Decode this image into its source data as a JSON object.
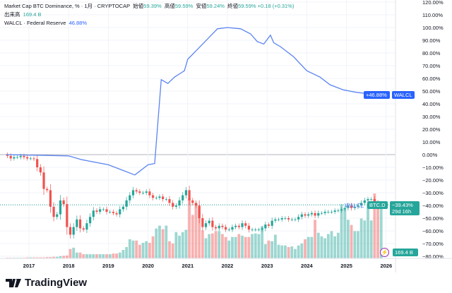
{
  "legend": {
    "title": "Market Cap BTC Dominance, % · 1月 · CRYPTOCAP",
    "open_label": "始値",
    "open": "59.39%",
    "high_label": "高値",
    "high": "59.59%",
    "low_label": "安値",
    "low": "59.24%",
    "close_label": "終値",
    "close": "59.59%",
    "change": "+0.18 (+0.31%)",
    "volume_label": "出来高",
    "volume": "169.4 B",
    "walcl_title": "WALCL · Federal Reserve",
    "walcl_value": "46.88%"
  },
  "badges": {
    "walcl_name": "WALCL",
    "walcl_value": "+46.88%",
    "btc_name": "BTC.D",
    "btc_value": "−39.43%",
    "btc_countdown": "29d 16h",
    "walcl_inline": "WALCL",
    "volume": "169.4 B"
  },
  "footer": {
    "brand": "TradingView"
  },
  "colors": {
    "up": "#26a69a",
    "down": "#ef5350",
    "walcl": "#5b84f0",
    "walcl_badge": "#2962ff",
    "lightning": "#9c27b0"
  },
  "icons": {
    "alert": "lightning-icon",
    "logo": "tradingview-logo"
  },
  "chart_data": {
    "type": "candlestick+line",
    "scale": "percent",
    "ylim": [
      -80,
      120
    ],
    "yticks": [
      "120.00%",
      "110.00%",
      "100.00%",
      "90.00%",
      "80.00%",
      "70.00%",
      "60.00%",
      "50.00%",
      "40.00%",
      "30.00%",
      "20.00%",
      "10.00%",
      "0.00%",
      "−10.00%",
      "−20.00%",
      "−30.00%",
      "−40.00%",
      "−50.00%",
      "−60.00%",
      "−70.00%",
      "−80.00%"
    ],
    "xticks": [
      "2017",
      "2018",
      "2019",
      "2020",
      "2021",
      "2022",
      "2023",
      "2024",
      "2025",
      "2026"
    ],
    "grid": true,
    "btc_d": {
      "name": "BTC.D",
      "start_month": "2016-06",
      "interval": "1M",
      "closes": [
        -1,
        -3,
        -2,
        -2,
        -1,
        -2,
        -3,
        -3,
        -3.5,
        -10,
        -14,
        -27,
        -28,
        -41,
        -49,
        -47,
        -36,
        -39,
        -57,
        -63,
        -57,
        -51,
        -58,
        -59,
        -54,
        -49,
        -44,
        -45,
        -43,
        -43,
        -45,
        -45,
        -46,
        -47,
        -43,
        -41,
        -36,
        -32,
        -28,
        -29,
        -30,
        -30,
        -29,
        -32,
        -34,
        -34,
        -33,
        -35,
        -35,
        -38,
        -41,
        -40,
        -36,
        -32,
        -28,
        -36,
        -38,
        -40,
        -50,
        -57,
        -54,
        -52,
        -57,
        -58,
        -56,
        -57,
        -59,
        -59,
        -57,
        -56,
        -57,
        -54,
        -56,
        -59,
        -59,
        -59,
        -59,
        -58,
        -55,
        -56,
        -52,
        -51,
        -51,
        -50,
        -50,
        -51,
        -51,
        -51,
        -49,
        -47,
        -48,
        -47,
        -46,
        -48,
        -46,
        -46,
        -45,
        -45,
        -45,
        -44,
        -44,
        -43,
        -42,
        -40,
        -42,
        -41,
        -40,
        -38,
        -36,
        -35,
        -35,
        -38,
        -41,
        -39.43
      ],
      "volume_B": [
        2,
        2,
        2,
        2,
        2,
        2,
        3,
        3,
        3,
        3,
        3,
        3,
        4,
        4,
        5,
        5,
        7,
        8,
        9,
        29,
        33,
        18,
        18,
        13,
        13,
        13,
        13,
        13,
        13,
        13,
        13,
        13,
        15,
        15,
        18,
        26,
        35,
        59,
        55,
        55,
        42,
        48,
        53,
        48,
        68,
        92,
        101,
        90,
        101,
        53,
        46,
        81,
        70,
        81,
        88,
        185,
        134,
        169,
        158,
        86,
        62,
        75,
        77,
        84,
        84,
        75,
        66,
        55,
        66,
        66,
        75,
        70,
        66,
        66,
        75,
        77,
        75,
        99,
        44,
        55,
        53,
        73,
        42,
        40,
        40,
        35,
        37,
        29,
        40,
        46,
        59,
        66,
        66,
        119,
        79,
        68,
        62,
        75,
        84,
        68,
        79,
        167,
        154,
        119,
        103,
        84,
        84,
        123,
        117,
        163,
        117,
        200,
        169,
        169.4
      ]
    },
    "walcl": {
      "name": "WALCL",
      "points": [
        [
          "2016-06",
          0
        ],
        [
          "2018-01",
          -1
        ],
        [
          "2018-05",
          -4
        ],
        [
          "2019-01",
          -8
        ],
        [
          "2019-06",
          -13
        ],
        [
          "2019-09",
          -16
        ],
        [
          "2019-10",
          -14
        ],
        [
          "2020-01",
          -8
        ],
        [
          "2020-03",
          -7
        ],
        [
          "2020-05",
          59
        ],
        [
          "2020-07",
          56
        ],
        [
          "2020-09",
          61
        ],
        [
          "2020-12",
          66
        ],
        [
          "2021-01",
          75
        ],
        [
          "2021-04",
          83
        ],
        [
          "2021-07",
          91
        ],
        [
          "2021-10",
          99
        ],
        [
          "2022-01",
          100
        ],
        [
          "2022-05",
          99
        ],
        [
          "2022-08",
          95
        ],
        [
          "2022-10",
          89
        ],
        [
          "2022-12",
          87
        ],
        [
          "2023-02",
          94
        ],
        [
          "2023-03",
          88
        ],
        [
          "2023-05",
          85
        ],
        [
          "2023-09",
          77
        ],
        [
          "2024-01",
          66
        ],
        [
          "2024-05",
          61
        ],
        [
          "2024-08",
          55
        ],
        [
          "2024-12",
          51
        ],
        [
          "2025-04",
          49
        ],
        [
          "2025-11",
          46.88
        ]
      ]
    }
  }
}
